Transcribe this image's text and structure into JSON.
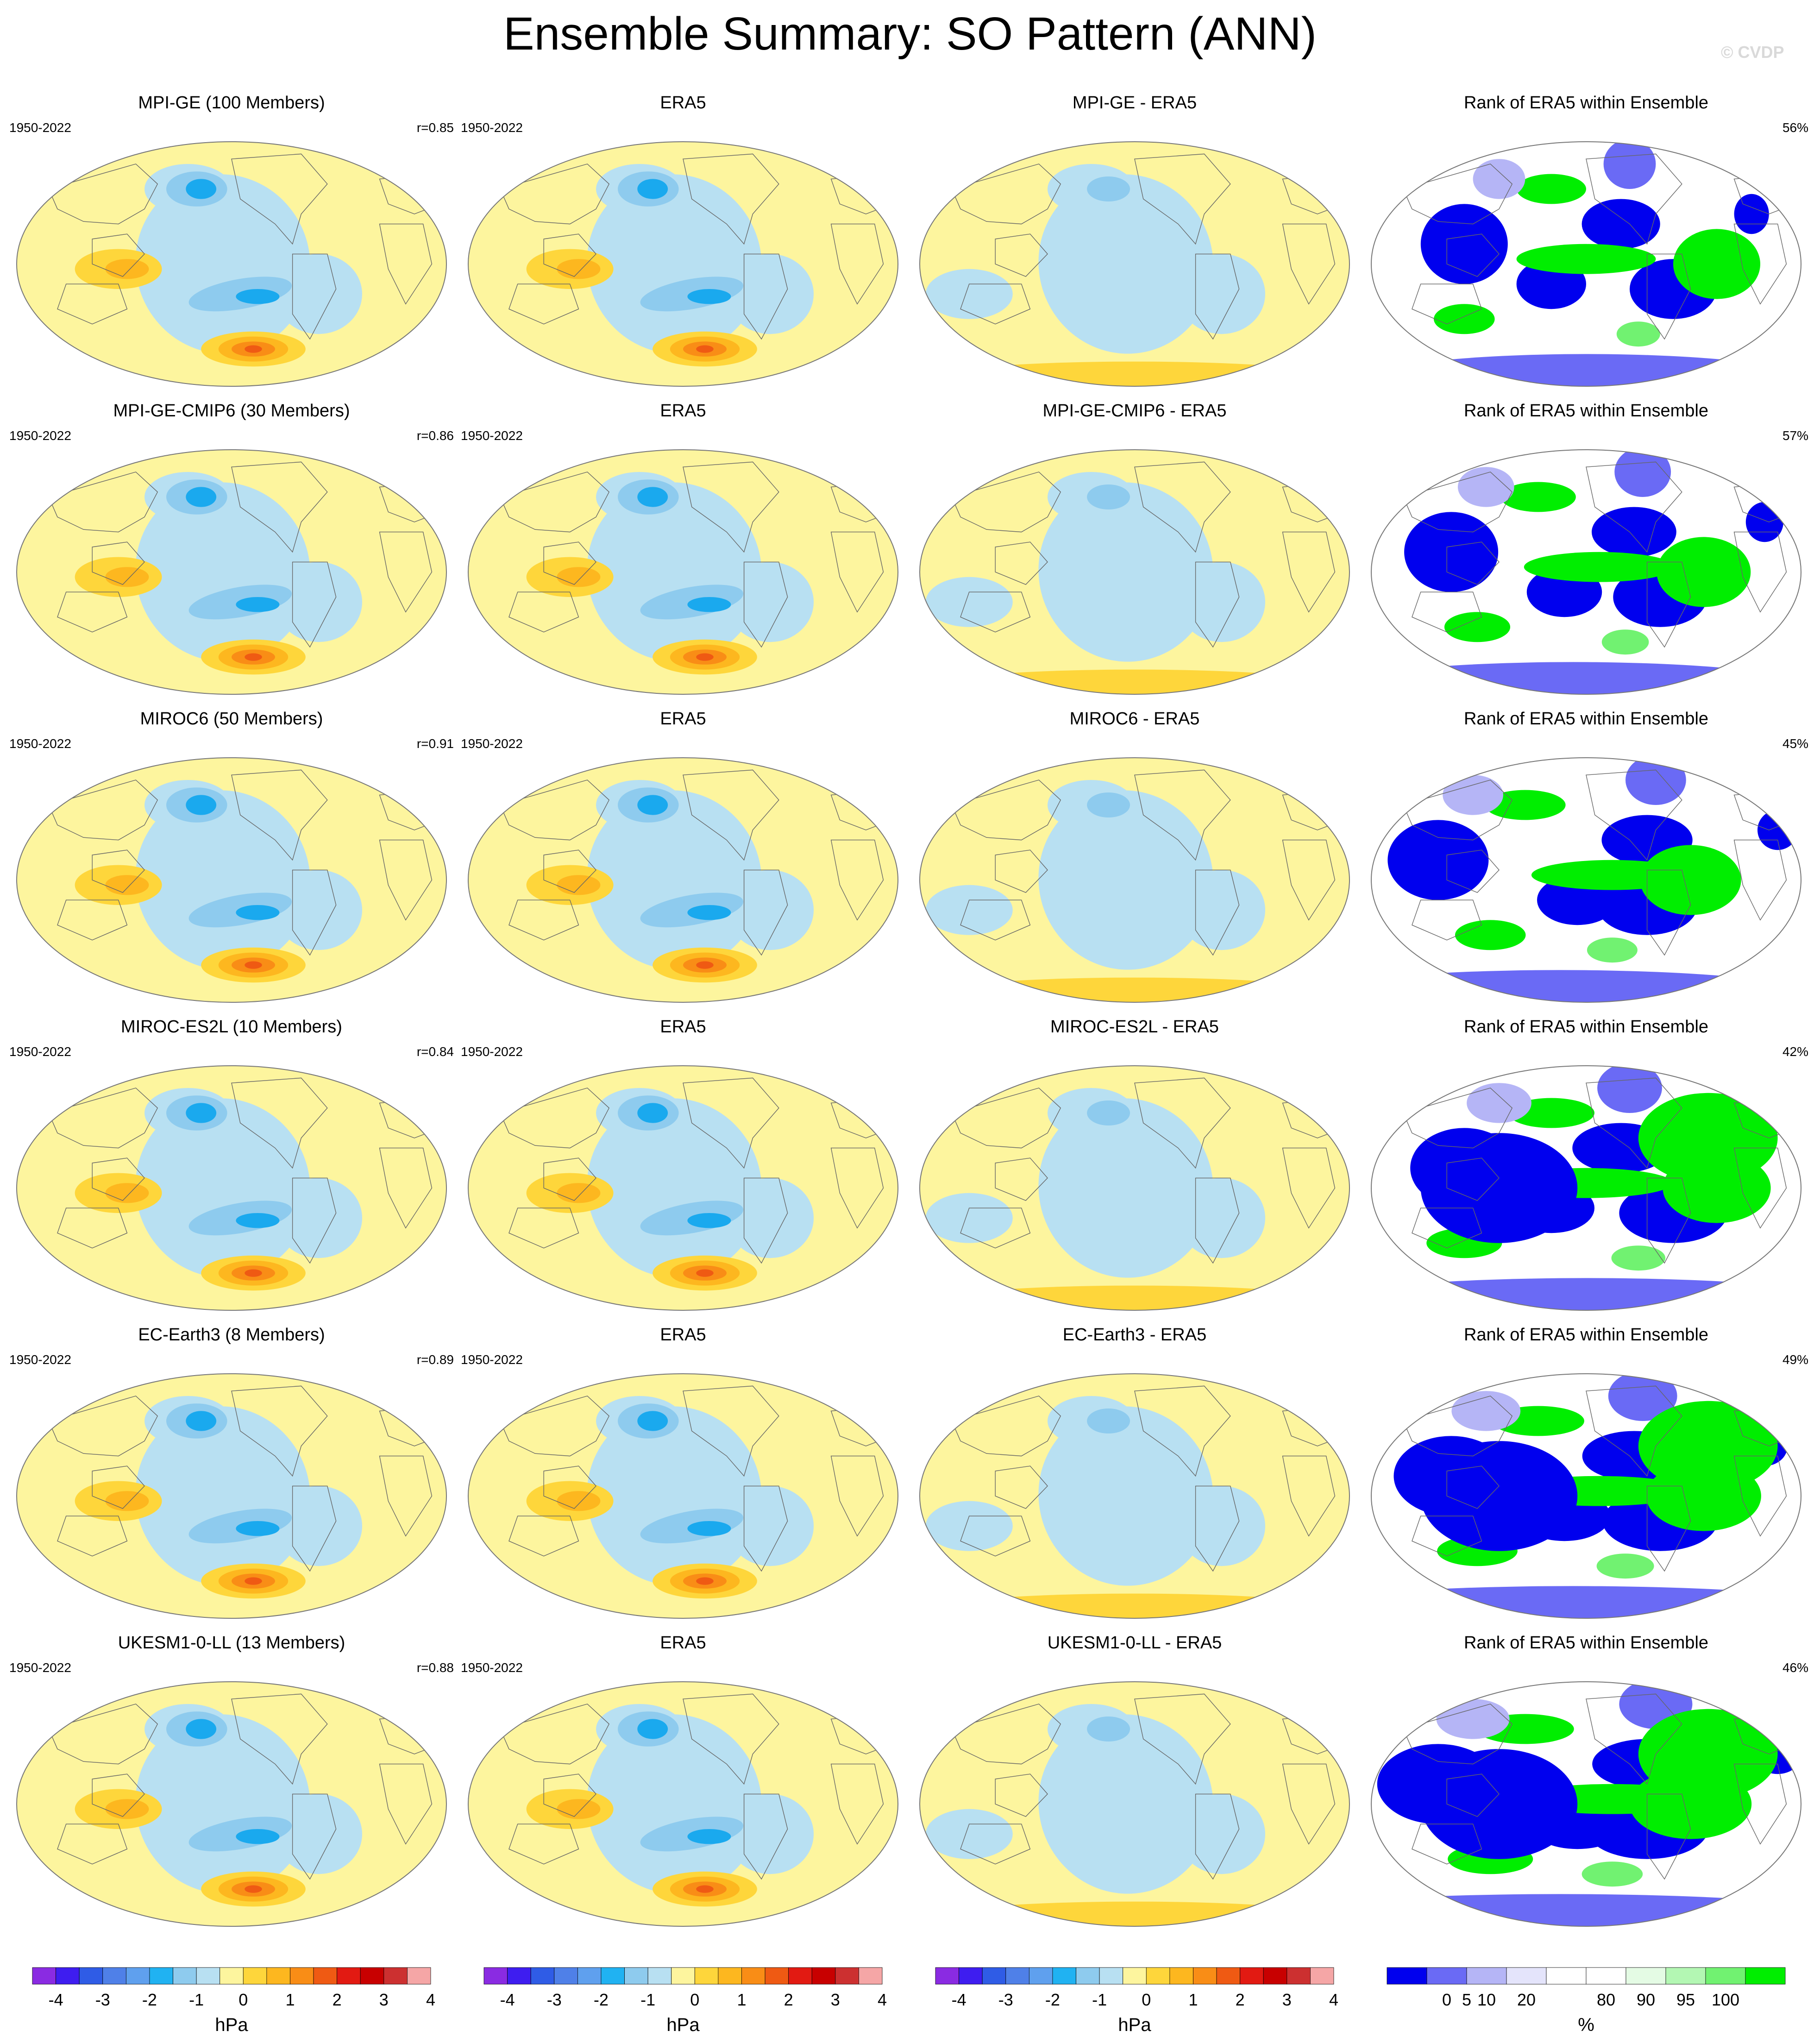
{
  "title": "Ensemble Summary: SO Pattern (ANN)",
  "watermark": "© CVDP",
  "colors": {
    "zero": "#fdf59e",
    "neg": [
      "#b8e0f2",
      "#8ecbee",
      "#4fb4ec",
      "#1aa9ee"
    ],
    "pos": [
      "#fed63b",
      "#fdb71f",
      "#f98d16",
      "#ef5a13"
    ],
    "rank_low": [
      "#0000ee",
      "#6a6af5",
      "#b5b5f6",
      "#e4e4fb"
    ],
    "rank_high": [
      "#e4fbe4",
      "#b3f7b3",
      "#71f271",
      "#00ee00"
    ],
    "rank_mid": "#ffffff",
    "map_outline": "#777777",
    "coast": "#666666"
  },
  "rows": [
    {
      "model": "MPI-GE (100 Members)",
      "period": "1950-2022",
      "r": "r=0.85",
      "diff_title": "MPI-GE - ERA5",
      "rank_pct": "56%"
    },
    {
      "model": "MPI-GE-CMIP6 (30 Members)",
      "period": "1950-2022",
      "r": "r=0.86",
      "diff_title": "MPI-GE-CMIP6 - ERA5",
      "rank_pct": "57%"
    },
    {
      "model": "MIROC6 (50 Members)",
      "period": "1950-2022",
      "r": "r=0.91",
      "diff_title": "MIROC6 - ERA5",
      "rank_pct": "45%"
    },
    {
      "model": "MIROC-ES2L (10 Members)",
      "period": "1950-2022",
      "r": "r=0.84",
      "diff_title": "MIROC-ES2L - ERA5",
      "rank_pct": "42%"
    },
    {
      "model": "EC-Earth3 (8 Members)",
      "period": "1950-2022",
      "r": "r=0.89",
      "diff_title": "EC-Earth3 - ERA5",
      "rank_pct": "49%"
    },
    {
      "model": "UKESM1-0-LL (13 Members)",
      "period": "1950-2022",
      "r": "r=0.88",
      "diff_title": "UKESM1-0-LL - ERA5",
      "rank_pct": "46%"
    }
  ],
  "obs_title": "ERA5",
  "rank_title": "Rank of ERA5 within Ensemble",
  "chart_data": {
    "type": "heatmap",
    "projection": "Robinson, Pacific-centered",
    "variable_units": "hPa",
    "rank_units": "%",
    "slp_colorbar": {
      "colors": [
        "#8a2be2",
        "#3e1df0",
        "#2f5ce6",
        "#4f80e8",
        "#5fa0ee",
        "#20b2f2",
        "#8ecbee",
        "#b8e0f2",
        "#fdf59e",
        "#fed63b",
        "#fdb71f",
        "#f98d16",
        "#ef5a13",
        "#e21a12",
        "#c80000",
        "#cc3030",
        "#f5a6a6"
      ],
      "tick_labels": [
        "-4",
        "-3",
        "-2",
        "-1",
        "0",
        "1",
        "2",
        "3",
        "4"
      ]
    },
    "rank_colorbar": {
      "colors": [
        "#0000ee",
        "#6a6af5",
        "#b5b5f6",
        "#e4e4fb",
        "#ffffff",
        "#ffffff",
        "#e4fbe4",
        "#b3f7b3",
        "#71f271",
        "#00ee00"
      ],
      "tick_labels": [
        "0",
        "5",
        "10",
        "20",
        "80",
        "90",
        "95",
        "100"
      ]
    }
  }
}
